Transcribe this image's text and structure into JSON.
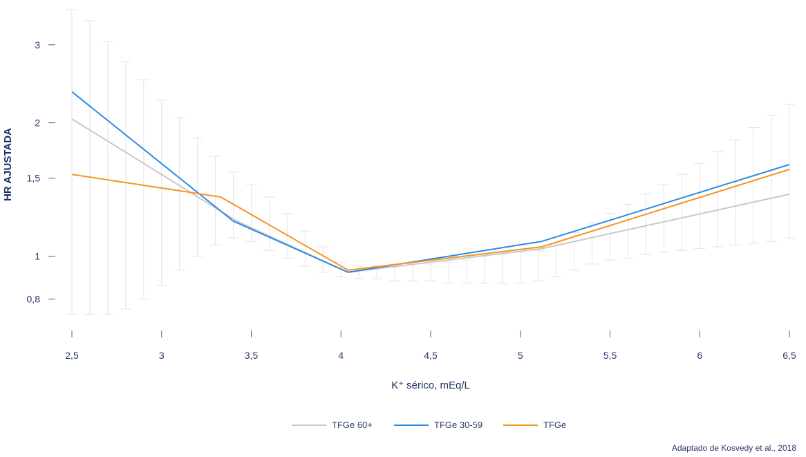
{
  "chart_data": {
    "type": "line",
    "xlabel": "K⁺ sérico, mEq/L",
    "ylabel": "HR AJUSTADA",
    "x_ticks": [
      2.5,
      3,
      3.5,
      4,
      4.5,
      5,
      5.5,
      6,
      6.5
    ],
    "x_tick_labels": [
      "2,5",
      "3",
      "3,5",
      "4",
      "4,5",
      "5",
      "5,5",
      "6",
      "6,5"
    ],
    "y_ticks": [
      0.8,
      1,
      1.5,
      2,
      3
    ],
    "y_tick_labels": [
      "0,8",
      "1",
      "1,5",
      "2",
      "3"
    ],
    "y_scale": "log",
    "xlim": [
      2.5,
      6.5
    ],
    "ylim": [
      0.72,
      3.6
    ],
    "series": [
      {
        "name": "TFGe 60+",
        "color": "#c8c8c8",
        "x": [
          2.5,
          3.42,
          4.04,
          5.12,
          6.5
        ],
        "y": [
          2.04,
          1.2,
          0.92,
          1.04,
          1.38
        ]
      },
      {
        "name": "TFGe 30-59",
        "color": "#2e8ae6",
        "x": [
          2.5,
          3.4,
          4.04,
          5.12,
          6.5
        ],
        "y": [
          2.35,
          1.2,
          0.92,
          1.08,
          1.61
        ]
      },
      {
        "name": "TFGe",
        "color": "#f7941d",
        "x": [
          2.5,
          3.33,
          4.04,
          5.12,
          6.5
        ],
        "y": [
          1.53,
          1.36,
          0.93,
          1.05,
          1.57
        ]
      }
    ],
    "error_band": {
      "x": [
        2.5,
        2.6,
        2.7,
        2.8,
        2.9,
        3.0,
        3.1,
        3.2,
        3.3,
        3.4,
        3.5,
        3.6,
        3.7,
        3.8,
        3.9,
        4.0,
        4.1,
        4.2,
        4.3,
        4.4,
        4.5,
        4.6,
        4.7,
        4.8,
        4.9,
        5.0,
        5.1,
        5.2,
        5.3,
        5.4,
        5.5,
        5.6,
        5.7,
        5.8,
        5.9,
        6.0,
        6.1,
        6.2,
        6.3,
        6.4,
        6.5
      ],
      "upper": [
        3.6,
        3.4,
        3.05,
        2.75,
        2.5,
        2.25,
        2.05,
        1.85,
        1.68,
        1.55,
        1.45,
        1.36,
        1.25,
        1.14,
        1.05,
        0.97,
        0.95,
        0.95,
        0.96,
        0.96,
        0.96,
        0.97,
        0.98,
        1.0,
        1.01,
        1.02,
        1.03,
        1.07,
        1.13,
        1.19,
        1.25,
        1.31,
        1.38,
        1.45,
        1.53,
        1.62,
        1.72,
        1.83,
        1.95,
        2.08,
        2.2
      ],
      "lower": [
        0.74,
        0.74,
        0.74,
        0.76,
        0.8,
        0.86,
        0.93,
        1.0,
        1.06,
        1.1,
        1.08,
        1.03,
        0.99,
        0.95,
        0.92,
        0.9,
        0.89,
        0.89,
        0.88,
        0.88,
        0.88,
        0.87,
        0.87,
        0.87,
        0.87,
        0.87,
        0.88,
        0.9,
        0.93,
        0.96,
        0.98,
        0.99,
        1.01,
        1.02,
        1.03,
        1.04,
        1.05,
        1.06,
        1.07,
        1.08,
        1.1
      ]
    },
    "legend_position": "bottom-center",
    "grid": false
  },
  "source_note": "Adaptado de Kosvedy et al., 2018"
}
